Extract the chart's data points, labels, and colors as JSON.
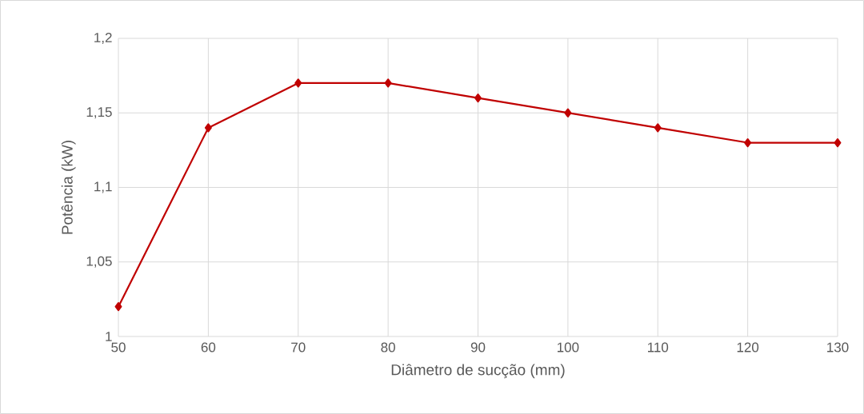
{
  "chart_data": {
    "type": "line",
    "xlabel": "Diâmetro de sucção (mm)",
    "ylabel": "Potência (kW)",
    "x": [
      50,
      60,
      70,
      80,
      90,
      100,
      110,
      120,
      130
    ],
    "series": [
      {
        "color": "#c00000",
        "values": [
          1.02,
          1.14,
          1.17,
          1.17,
          1.16,
          1.15,
          1.14,
          1.13,
          1.13
        ]
      }
    ],
    "xlim": [
      50,
      130
    ],
    "xticks": [
      50,
      60,
      70,
      80,
      90,
      100,
      110,
      120,
      130
    ],
    "ylim": [
      1,
      1.2
    ],
    "yticks": [
      {
        "value": 1,
        "label": "1"
      },
      {
        "value": 1.05,
        "label": "1,05"
      },
      {
        "value": 1.1,
        "label": "1,1"
      },
      {
        "value": 1.15,
        "label": "1,15"
      },
      {
        "value": 1.2,
        "label": "1,2"
      }
    ],
    "grid": true,
    "marker": "diamond",
    "line_style": "solid"
  }
}
